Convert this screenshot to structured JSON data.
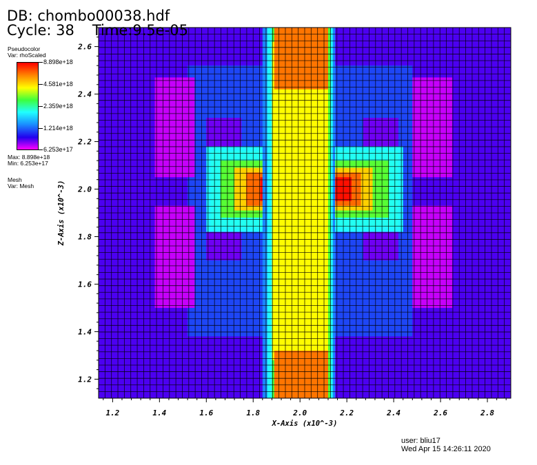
{
  "header": {
    "db_title": "DB: chombo00038.hdf",
    "cycle": "Cycle: 38",
    "time": "Time:9.5e-05"
  },
  "legend": {
    "plot_type": "Pseudocolor",
    "var": "Var: rhoScaled",
    "labels": [
      "8.898e+18",
      "4.581e+18",
      "2.359e+18",
      "1.214e+18",
      "6.253e+17"
    ],
    "max": "Max:  8.898e+18",
    "min": "Min:  6.253e+17",
    "mesh_type": "Mesh",
    "mesh_var": "Var: Mesh"
  },
  "colors": {
    "colormap": [
      "#ff00ff",
      "#2200ee",
      "#1a8fff",
      "#20ffff",
      "#3dff3d",
      "#ffff00",
      "#ff8000",
      "#ff0000"
    ],
    "mesh_line": "#000000"
  },
  "chart_data": {
    "type": "heatmap",
    "title": "",
    "xlabel": "X-Axis (x10^-3)",
    "ylabel": "Z-Axis (x10^-3)",
    "xlim": [
      1.14,
      2.9
    ],
    "ylim": [
      1.12,
      2.68
    ],
    "x_ticks": [
      "1.2",
      "1.4",
      "1.6",
      "1.8",
      "2.0",
      "2.2",
      "2.4",
      "2.6",
      "2.8"
    ],
    "y_ticks": [
      "1.2",
      "1.4",
      "1.6",
      "1.8",
      "2.0",
      "2.2",
      "2.4",
      "2.6"
    ],
    "mesh_cells": [
      64,
      56
    ],
    "color_scale": "log",
    "value_range": [
      6.253e+17,
      8.898e+18
    ],
    "regions": [
      {
        "name": "background",
        "x": [
          1.14,
          2.9
        ],
        "y": [
          1.12,
          2.68
        ],
        "value": 8.5e+17
      },
      {
        "name": "outer-halo-left",
        "x": [
          1.52,
          2.02
        ],
        "y": [
          1.38,
          2.52
        ],
        "value": 1.1e+18
      },
      {
        "name": "outer-halo-right",
        "x": [
          2.02,
          2.48
        ],
        "y": [
          1.38,
          2.52
        ],
        "value": 1.1e+18
      },
      {
        "name": "left-pocket-upper",
        "x": [
          1.38,
          1.55
        ],
        "y": [
          2.05,
          2.47
        ],
        "value": 6.9e+17
      },
      {
        "name": "left-pocket-lower",
        "x": [
          1.38,
          1.55
        ],
        "y": [
          1.5,
          1.93
        ],
        "value": 6.9e+17
      },
      {
        "name": "right-pocket-upper",
        "x": [
          2.48,
          2.65
        ],
        "y": [
          2.05,
          2.47
        ],
        "value": 6.9e+17
      },
      {
        "name": "right-pocket-lower",
        "x": [
          2.48,
          2.65
        ],
        "y": [
          1.5,
          1.93
        ],
        "value": 6.9e+17
      },
      {
        "name": "inner-left-upper",
        "x": [
          1.6,
          1.75
        ],
        "y": [
          2.05,
          2.3
        ],
        "value": 8e+17
      },
      {
        "name": "inner-left-lower",
        "x": [
          1.6,
          1.75
        ],
        "y": [
          1.7,
          1.93
        ],
        "value": 8e+17
      },
      {
        "name": "inner-right-upper",
        "x": [
          2.27,
          2.42
        ],
        "y": [
          2.05,
          2.3
        ],
        "value": 8e+17
      },
      {
        "name": "inner-right-lower",
        "x": [
          2.27,
          2.42
        ],
        "y": [
          1.7,
          1.93
        ],
        "value": 8e+17
      },
      {
        "name": "crossbar-edge",
        "x": [
          1.6,
          2.44
        ],
        "y": [
          1.82,
          2.18
        ],
        "value": 1.9e+18
      },
      {
        "name": "crossbar-cyan-core",
        "x": [
          1.62,
          2.42
        ],
        "y": [
          1.84,
          2.16
        ],
        "value": 2e+18
      },
      {
        "name": "crossbar-green",
        "x": [
          1.66,
          2.38
        ],
        "y": [
          1.88,
          2.12
        ],
        "value": 3e+18
      },
      {
        "name": "crossbar-yellow",
        "x": [
          1.72,
          2.31
        ],
        "y": [
          1.91,
          2.09
        ],
        "value": 4.8e+18
      },
      {
        "name": "crossbar-orange",
        "x": [
          1.77,
          2.26
        ],
        "y": [
          1.93,
          2.07
        ],
        "value": 6.5e+18
      },
      {
        "name": "crossbar-red",
        "x": [
          1.83,
          2.22
        ],
        "y": [
          1.95,
          2.05
        ],
        "value": 8.5e+18
      },
      {
        "name": "column-blue-edge",
        "x": [
          1.84,
          2.15
        ],
        "y": [
          1.12,
          2.68
        ],
        "value": 1.3e+18
      },
      {
        "name": "column-cyan",
        "x": [
          1.86,
          2.14
        ],
        "y": [
          1.12,
          2.68
        ],
        "value": 1.9e+18
      },
      {
        "name": "column-green",
        "x": [
          1.88,
          2.13
        ],
        "y": [
          1.12,
          2.68
        ],
        "value": 2.9e+18
      },
      {
        "name": "column-yellow",
        "x": [
          1.88,
          2.12
        ],
        "y": [
          1.28,
          2.62
        ],
        "value": 4.2e+18
      },
      {
        "name": "column-orange",
        "x": [
          1.89,
          2.12
        ],
        "y": [
          1.12,
          1.32
        ],
        "value": 6.3e+18
      },
      {
        "name": "column-orange-top",
        "x": [
          1.89,
          2.12
        ],
        "y": [
          2.42,
          2.68
        ],
        "value": 6.3e+18
      }
    ]
  },
  "footer": {
    "user": "user: bliu17",
    "timestamp": "Wed Apr 15 14:26:11 2020"
  }
}
